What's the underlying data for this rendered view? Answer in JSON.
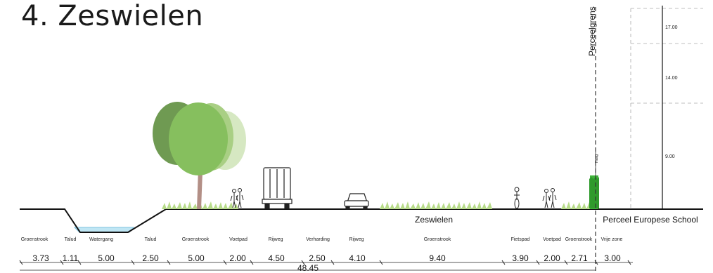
{
  "title": "4. Zeswielen",
  "boundary_label": "Perceelgrens",
  "road_name": "Zeswielen",
  "school_label": "Perceel Europese School",
  "total_width": "48.45",
  "hedge_label": "Haag",
  "segments": [
    {
      "name": "Groenstrook",
      "width": "3.73"
    },
    {
      "name": "Talud",
      "width": "1.11"
    },
    {
      "name": "Watergang",
      "width": "5.00"
    },
    {
      "name": "Talud",
      "width": "2.50"
    },
    {
      "name": "Groenstrook",
      "width": "5.00"
    },
    {
      "name": "Voetpad",
      "width": "2.00"
    },
    {
      "name": "Rijweg",
      "width": "4.50"
    },
    {
      "name": "Verharding",
      "width": "2.50"
    },
    {
      "name": "Rijweg",
      "width": "4.10"
    },
    {
      "name": "Groenstrook",
      "width": "9.40"
    },
    {
      "name": "Fietspad",
      "width": "3.90"
    },
    {
      "name": "Voetpad",
      "width": "2.00"
    },
    {
      "name": "Groenstrook",
      "width": "2.71"
    },
    {
      "name": "Vrije zone",
      "width": "3.00"
    }
  ],
  "heights": [
    "17.00",
    "14.00",
    "9.00"
  ]
}
